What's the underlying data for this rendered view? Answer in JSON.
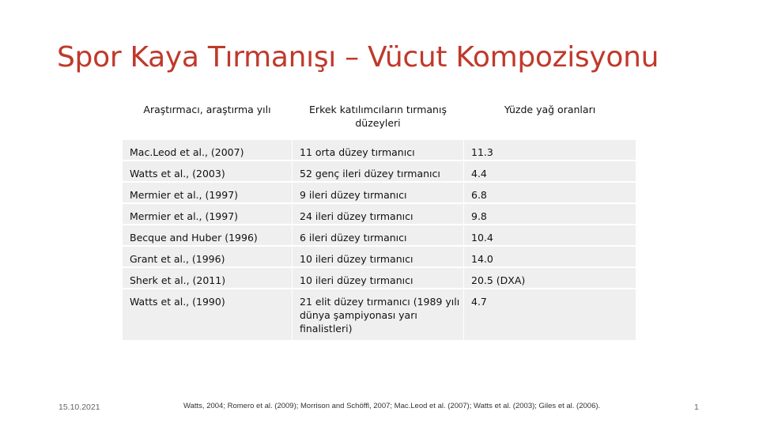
{
  "slide": {
    "title": "Spor Kaya Tırmanışı – Vücut Kompozisyonu",
    "date": "15.10.2021",
    "page_number": "1",
    "reference": "Watts, 2004; Romero et al. (2009); Morrison and Schöffl, 2007; Mac.Leod et al. (2007); Watts et al. (2003); Giles et al. (2006)."
  },
  "table": {
    "headers": [
      "Araştırmacı, araştırma yılı",
      "Erkek katılımcıların tırmanış düzeyleri",
      "Yüzde yağ oranları"
    ],
    "rows": [
      [
        "Mac.Leod et al., (2007)",
        "11 orta düzey tırmanıcı",
        "11.3"
      ],
      [
        "Watts et al., (2003)",
        "52 genç ileri düzey tırmanıcı",
        "4.4"
      ],
      [
        "Mermier et al., (1997)",
        "9 ileri düzey tırmanıcı",
        "6.8"
      ],
      [
        "Mermier et al., (1997)",
        "24 ileri düzey tırmanıcı",
        "9.8"
      ],
      [
        "Becque and Huber (1996)",
        "6 ileri düzey tırmanıcı",
        "10.4"
      ],
      [
        "Grant et al., (1996)",
        "10 ileri düzey tırmanıcı",
        "14.0"
      ],
      [
        "Sherk et al., (2011)",
        "10 ileri düzey tırmanıcı",
        "20.5 (DXA)"
      ],
      [
        "Watts et al., (1990)",
        "21 elit düzey tırmanıcı (1989 yılı dünya şampiyonası yarı finalistleri)",
        "4.7"
      ]
    ]
  },
  "colors": {
    "title": "#c0392b",
    "row_fill": "#efefef"
  }
}
